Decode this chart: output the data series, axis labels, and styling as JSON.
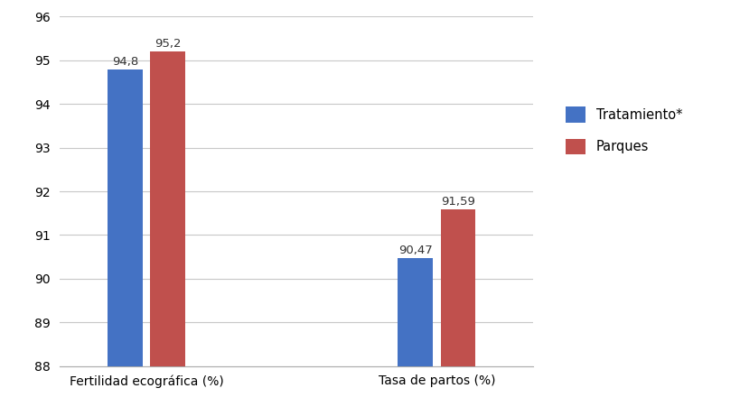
{
  "categories": [
    "Fertilidad ecográfica (%)",
    "Tasa de partos (%)"
  ],
  "tratamiento_values": [
    94.8,
    90.47
  ],
  "parques_values": [
    95.2,
    91.59
  ],
  "tratamiento_labels": [
    "94,8",
    "90,47"
  ],
  "parques_labels": [
    "95,2",
    "91,59"
  ],
  "tratamiento_color": "#4472C4",
  "parques_color": "#C0504D",
  "legend_tratamiento": "Tratamiento*",
  "legend_parques": "Parques",
  "ylim_min": 88,
  "ylim_max": 96,
  "yticks": [
    88,
    89,
    90,
    91,
    92,
    93,
    94,
    95,
    96
  ],
  "bar_width": 0.18,
  "background_color": "#ffffff",
  "grid_color": "#c8c8c8",
  "label_fontsize": 9.5,
  "tick_fontsize": 10,
  "legend_fontsize": 10.5
}
